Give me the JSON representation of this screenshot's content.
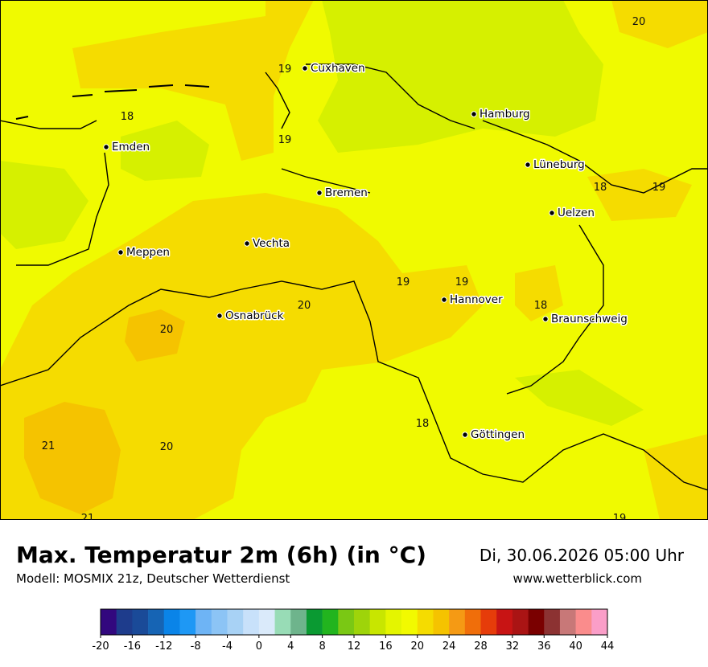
{
  "map": {
    "cities": [
      "Cuxhaven",
      "Hamburg",
      "Emden",
      "Lüneburg",
      "Bremen",
      "Uelzen",
      "Meppen",
      "Vechta",
      "Hannover",
      "Braunschweig",
      "Osnabrück",
      "Göttingen"
    ],
    "contour_labels": [
      20,
      19,
      18,
      19,
      18,
      19,
      19,
      19,
      20,
      18,
      20,
      18,
      21,
      20,
      21,
      19
    ]
  },
  "footer": {
    "title": "Max. Temperatur 2m (6h) (in °C)",
    "model": "Modell: MOSMIX 21z, Deutscher Wetterdienst",
    "date": "Di, 30.06.2026 05:00 Uhr",
    "url": "www.wetterblick.com"
  },
  "colorbar": {
    "ticks": [
      -20,
      -16,
      -12,
      -8,
      -4,
      0,
      4,
      8,
      12,
      16,
      20,
      24,
      28,
      32,
      36,
      40,
      44
    ],
    "colors": [
      "#32087e",
      "#1e3c8c",
      "#1a4a98",
      "#1664b4",
      "#0a84e8",
      "#1e98f5",
      "#6eb4f5",
      "#8cc4f5",
      "#a8d2f5",
      "#c8e1fa",
      "#daeafa",
      "#98dcb6",
      "#6eb48c",
      "#0a9a32",
      "#22b41e",
      "#7ac814",
      "#9ed40a",
      "#c8e600",
      "#e4f500",
      "#f2fa00",
      "#f5dc00",
      "#f5c300",
      "#f59a14",
      "#f06e0a",
      "#e63c0a",
      "#c81414",
      "#aa1414",
      "#7a0000",
      "#8c3232",
      "#c87878",
      "#fa8c8c",
      "#fa9ec8"
    ]
  }
}
